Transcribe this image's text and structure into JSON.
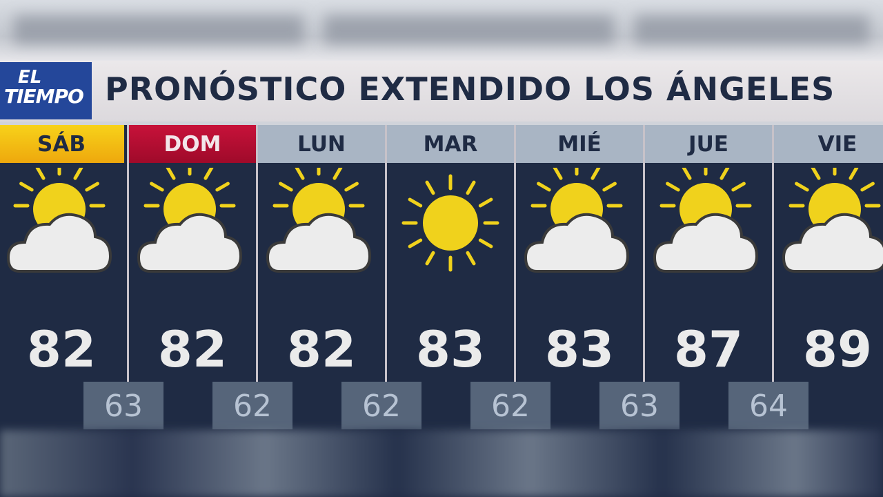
{
  "logo": {
    "line1": "EL",
    "line2": "TIEMPO"
  },
  "title": "PRONÓSTICO EXTENDIDO LOS ÁNGELES",
  "days": [
    {
      "day": "SÁB",
      "icon": "partly-cloudy-icon",
      "high": "82",
      "low": "63"
    },
    {
      "day": "DOM",
      "icon": "partly-cloudy-icon",
      "high": "82",
      "low": "62"
    },
    {
      "day": "LUN",
      "icon": "partly-cloudy-icon",
      "high": "82",
      "low": "62"
    },
    {
      "day": "MAR",
      "icon": "sunny-icon",
      "high": "83",
      "low": "62"
    },
    {
      "day": "MIÉ",
      "icon": "partly-cloudy-icon",
      "high": "83",
      "low": "63"
    },
    {
      "day": "JUE",
      "icon": "partly-cloudy-icon",
      "high": "87",
      "low": "64"
    },
    {
      "day": "VIE",
      "icon": "partly-cloudy-icon",
      "high": "89"
    }
  ],
  "colors": {
    "saturday": "#f2c414",
    "sunday": "#b50e33",
    "weekday": "#a9b5c4",
    "panel": "#1f2b44",
    "low_box": "#56657a"
  }
}
